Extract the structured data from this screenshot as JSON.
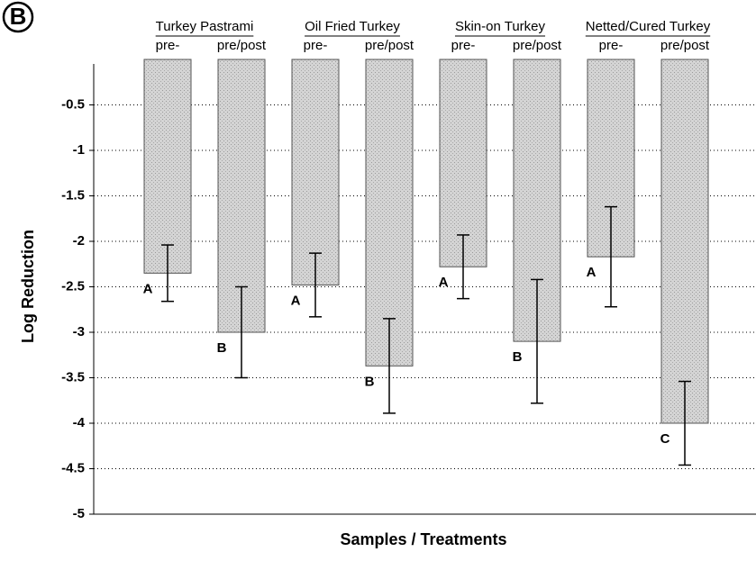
{
  "chart_data": {
    "type": "bar",
    "panel_label": "B",
    "ylabel": "Log Reduction",
    "xlabel": "Samples / Treatments",
    "groups": [
      "Turkey Pastrami",
      "Oil Fried Turkey",
      "Skin-on Turkey",
      "Netted/Cured Turkey"
    ],
    "categories": [
      "pre-",
      "pre/post",
      "pre-",
      "pre/post",
      "pre-",
      "pre/post",
      "pre-",
      "pre/post"
    ],
    "values": [
      -2.35,
      -3.0,
      -2.48,
      -3.37,
      -2.28,
      -3.1,
      -2.17,
      -4.0
    ],
    "errors": [
      0.31,
      0.5,
      0.35,
      0.52,
      0.35,
      0.68,
      0.55,
      0.46
    ],
    "letters": [
      "A",
      "B",
      "A",
      "B",
      "A",
      "B",
      "A",
      "C"
    ],
    "color": "#cfcfcf",
    "ylim": [
      -5.0,
      0
    ],
    "yticks": [
      -0.5,
      -1.0,
      -1.5,
      -2.0,
      -2.5,
      -3.0,
      -3.5,
      -4.0,
      -4.5,
      -5.0
    ],
    "grid": true
  }
}
